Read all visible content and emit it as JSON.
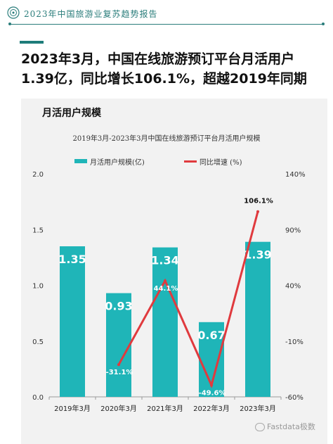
{
  "header": {
    "title": "2023年中国旅游业复苏趋势报告",
    "accent_color": "#2a7d7b",
    "logo_icon": "circular-emblem-icon"
  },
  "headline": "2023年3月，中国在线旅游预订平台月活用户1.39亿，同比增长106.1%，超越2019年同期",
  "panel_title": "月活用户规模",
  "watermark": "Fastdata极数",
  "chart_data": {
    "type": "bar",
    "title": "2019年3月-2023年3月中国在线旅游预订平台月活用户规模",
    "categories": [
      "2019年3月",
      "2020年3月",
      "2021年3月",
      "2022年3月",
      "2023年3月"
    ],
    "series": [
      {
        "name": "月活用户规模(亿)",
        "type": "bar",
        "axis": "left",
        "color": "#1fb5b8",
        "values": [
          1.35,
          0.93,
          1.34,
          0.67,
          1.39
        ],
        "labels": [
          "1.35",
          "0.93",
          "1.34",
          "0.67",
          "1.39"
        ]
      },
      {
        "name": "同比增速 (%)",
        "type": "line",
        "axis": "right",
        "color": "#e03a3e",
        "values": [
          null,
          -31.1,
          44.1,
          -49.6,
          106.1
        ],
        "labels": [
          "",
          "-31.1%",
          "44.1%",
          "-49.6%",
          "106.1%"
        ]
      }
    ],
    "y_left": {
      "ylim": [
        0,
        2.0
      ],
      "ticks": [
        "0.0",
        "0.5",
        "1.0",
        "1.5",
        "2.0"
      ]
    },
    "y_right": {
      "ylim": [
        -60,
        140
      ],
      "ticks": [
        "-60%",
        "-10%",
        "40%",
        "90%",
        "140%"
      ]
    },
    "grid": false,
    "legend": "top"
  }
}
